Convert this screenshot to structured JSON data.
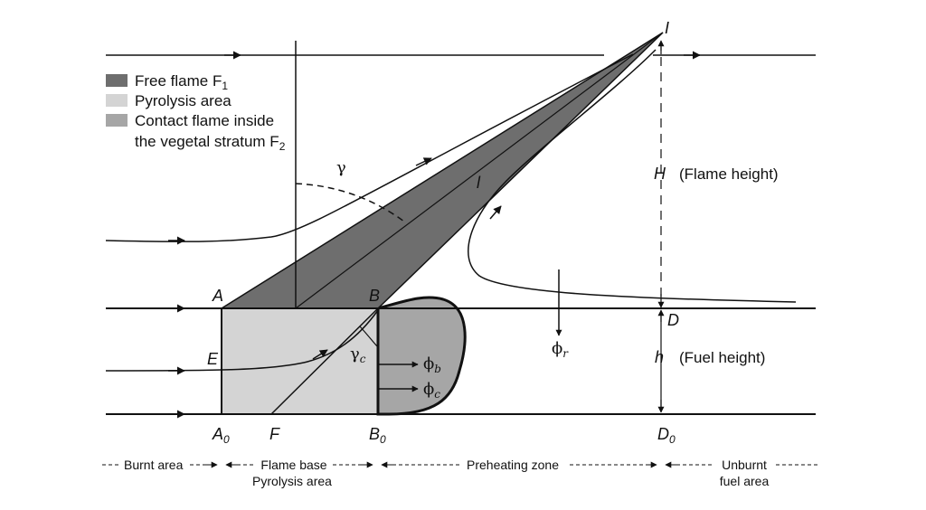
{
  "legend": {
    "free_flame": "Free flame F",
    "free_flame_sub": "1",
    "pyrolysis": "Pyrolysis area",
    "contact_line1": "Contact flame inside",
    "contact_line2": "the vegetal stratum F",
    "contact_sub": "2",
    "colors": {
      "free_flame": "#6e6e6e",
      "pyrolysis": "#d4d4d4",
      "contact": "#a6a6a6"
    }
  },
  "points": {
    "A": "A",
    "B": "B",
    "D": "D",
    "E": "E",
    "F": "F",
    "I": "I",
    "l": "l",
    "A0": "A",
    "A0_sub": "0",
    "B0": "B",
    "B0_sub": "0",
    "D0": "D",
    "D0_sub": "0"
  },
  "symbols": {
    "gamma": "γ",
    "gamma_c": "γ",
    "gamma_c_sub": "c",
    "phi_b": "ϕ",
    "phi_b_sub": "b",
    "phi_c": "ϕ",
    "phi_c_sub": "c",
    "phi_r": "ϕ",
    "phi_r_sub": "r"
  },
  "dimensions": {
    "H": "H",
    "flame_height": "(Flame height)",
    "h": "h",
    "fuel_height": "(Fuel height)"
  },
  "zones": {
    "burnt": "Burnt area",
    "flame_base_line1": "Flame base",
    "flame_base_line2": "Pyrolysis area",
    "preheating": "Preheating zone",
    "unburnt_line1": "Unburnt",
    "unburnt_line2": "fuel area"
  }
}
